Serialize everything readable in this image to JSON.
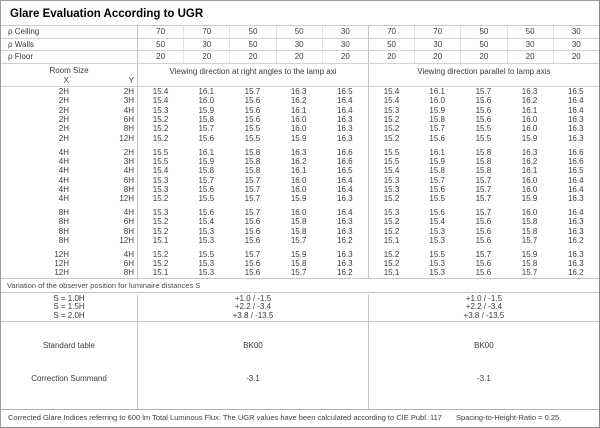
{
  "title": "Glare Evaluation According to UGR",
  "reflectance": {
    "rows": [
      {
        "label": "ρ  Ceiling",
        "values": [
          "70",
          "70",
          "50",
          "50",
          "30",
          "70",
          "70",
          "50",
          "50",
          "30"
        ]
      },
      {
        "label": "ρ  Walls",
        "values": [
          "50",
          "30",
          "50",
          "30",
          "30",
          "50",
          "30",
          "50",
          "30",
          "30"
        ]
      },
      {
        "label": "ρ  Floor",
        "values": [
          "20",
          "20",
          "20",
          "20",
          "20",
          "20",
          "20",
          "20",
          "20",
          "20"
        ]
      }
    ]
  },
  "table_header": {
    "room_size": "Room Size",
    "x_label": "X",
    "y_label": "Y",
    "left_block": "Viewing direction at right angles to the lamp axi",
    "right_block": "Viewing direction parallel to lamp axis"
  },
  "ugr_groups": [
    {
      "rows": [
        {
          "x": "2H",
          "y": "2H",
          "right_angle": [
            "15.4",
            "16.1",
            "15.7",
            "16.3",
            "16.5"
          ],
          "parallel": [
            "15.4",
            "16.1",
            "15.7",
            "16.3",
            "16.5"
          ]
        },
        {
          "x": "2H",
          "y": "3H",
          "right_angle": [
            "15.4",
            "16.0",
            "15.6",
            "16.2",
            "16.4"
          ],
          "parallel": [
            "15.4",
            "16.0",
            "15.6",
            "16.2",
            "16.4"
          ]
        },
        {
          "x": "2H",
          "y": "4H",
          "right_angle": [
            "15.3",
            "15.9",
            "15.6",
            "16.1",
            "16.4"
          ],
          "parallel": [
            "15.3",
            "15.9",
            "15.6",
            "16.1",
            "16.4"
          ]
        },
        {
          "x": "2H",
          "y": "6H",
          "right_angle": [
            "15.2",
            "15.8",
            "15.6",
            "16.0",
            "16.3"
          ],
          "parallel": [
            "15.2",
            "15.8",
            "15.6",
            "16.0",
            "16.3"
          ]
        },
        {
          "x": "2H",
          "y": "8H",
          "right_angle": [
            "15.2",
            "15.7",
            "15.5",
            "16.0",
            "16.3"
          ],
          "parallel": [
            "15.2",
            "15.7",
            "15.5",
            "16.0",
            "16.3"
          ]
        },
        {
          "x": "2H",
          "y": "12H",
          "right_angle": [
            "15.2",
            "15.6",
            "15.5",
            "15.9",
            "16.3"
          ],
          "parallel": [
            "15.2",
            "15.6",
            "15.5",
            "15.9",
            "16.3"
          ]
        }
      ]
    },
    {
      "rows": [
        {
          "x": "4H",
          "y": "2H",
          "right_angle": [
            "15.5",
            "16.1",
            "15.8",
            "16.3",
            "16.6"
          ],
          "parallel": [
            "15.5",
            "16.1",
            "15.8",
            "16.3",
            "16.6"
          ]
        },
        {
          "x": "4H",
          "y": "3H",
          "right_angle": [
            "15.5",
            "15.9",
            "15.8",
            "16.2",
            "16.6"
          ],
          "parallel": [
            "15.5",
            "15.9",
            "15.8",
            "16.2",
            "16.6"
          ]
        },
        {
          "x": "4H",
          "y": "4H",
          "right_angle": [
            "15.4",
            "15.8",
            "15.8",
            "16.1",
            "16.5"
          ],
          "parallel": [
            "15.4",
            "15.8",
            "15.8",
            "16.1",
            "16.5"
          ]
        },
        {
          "x": "4H",
          "y": "6H",
          "right_angle": [
            "15.3",
            "15.7",
            "15.7",
            "16.0",
            "16.4"
          ],
          "parallel": [
            "15.3",
            "15.7",
            "15.7",
            "16.0",
            "16.4"
          ]
        },
        {
          "x": "4H",
          "y": "8H",
          "right_angle": [
            "15.3",
            "15.6",
            "15.7",
            "16.0",
            "16.4"
          ],
          "parallel": [
            "15.3",
            "15.6",
            "15.7",
            "16.0",
            "16.4"
          ]
        },
        {
          "x": "4H",
          "y": "12H",
          "right_angle": [
            "15.2",
            "15.5",
            "15.7",
            "15.9",
            "16.3"
          ],
          "parallel": [
            "15.2",
            "15.5",
            "15.7",
            "15.9",
            "16.3"
          ]
        }
      ]
    },
    {
      "rows": [
        {
          "x": "8H",
          "y": "4H",
          "right_angle": [
            "15.3",
            "15.6",
            "15.7",
            "16.0",
            "16.4"
          ],
          "parallel": [
            "15.3",
            "15.6",
            "15.7",
            "16.0",
            "16.4"
          ]
        },
        {
          "x": "8H",
          "y": "6H",
          "right_angle": [
            "15.2",
            "15.4",
            "15.6",
            "15.8",
            "16.3"
          ],
          "parallel": [
            "15.2",
            "15.4",
            "15.6",
            "15.8",
            "16.3"
          ]
        },
        {
          "x": "8H",
          "y": "8H",
          "right_angle": [
            "15.2",
            "15.3",
            "15.6",
            "15.8",
            "16.3"
          ],
          "parallel": [
            "15.2",
            "15.3",
            "15.6",
            "15.8",
            "16.3"
          ]
        },
        {
          "x": "8H",
          "y": "12H",
          "right_angle": [
            "15.1",
            "15.3",
            "15.6",
            "15.7",
            "16.2"
          ],
          "parallel": [
            "15.1",
            "15.3",
            "15.6",
            "15.7",
            "16.2"
          ]
        }
      ]
    },
    {
      "rows": [
        {
          "x": "12H",
          "y": "4H",
          "right_angle": [
            "15.2",
            "15.5",
            "15.7",
            "15.9",
            "16.3"
          ],
          "parallel": [
            "15.2",
            "15.5",
            "15.7",
            "15.9",
            "16.3"
          ]
        },
        {
          "x": "12H",
          "y": "6H",
          "right_angle": [
            "15.2",
            "15.3",
            "15.6",
            "15.8",
            "16.3"
          ],
          "parallel": [
            "15.2",
            "15.3",
            "15.6",
            "15.8",
            "16.3"
          ]
        },
        {
          "x": "12H",
          "y": "8H",
          "right_angle": [
            "15.1",
            "15.3",
            "15.6",
            "15.7",
            "16.2"
          ],
          "parallel": [
            "15.1",
            "15.3",
            "15.6",
            "15.7",
            "16.2"
          ]
        }
      ]
    }
  ],
  "observer_variation": {
    "label": "Variation of the observer position for luminaire distances S",
    "rows": [
      {
        "s": "S = 1.0H",
        "left": "+1.0 / -1.5",
        "right": "+1.0 / -1.5"
      },
      {
        "s": "S = 1.5H",
        "left": "+2.2 / -3.4",
        "right": "+2.2 / -3.4"
      },
      {
        "s": "S = 2.0H",
        "left": "+3.8 / -13.5",
        "right": "+3.8 / -13.5"
      }
    ]
  },
  "summary": {
    "standard_table_label": "Standard table",
    "standard_table_left": "BK00",
    "standard_table_right": "BK00",
    "correction_label": "Correction Summand",
    "correction_left": "-3.1",
    "correction_right": "-3.1"
  },
  "footer": {
    "text": "Corrected Glare Indices referring to 600 lm Total Luminous Flux. The UGR values have been calculated according to CIE Publ. 117",
    "ratio": "Spacing-to-Height-Ratio = 0.25."
  }
}
